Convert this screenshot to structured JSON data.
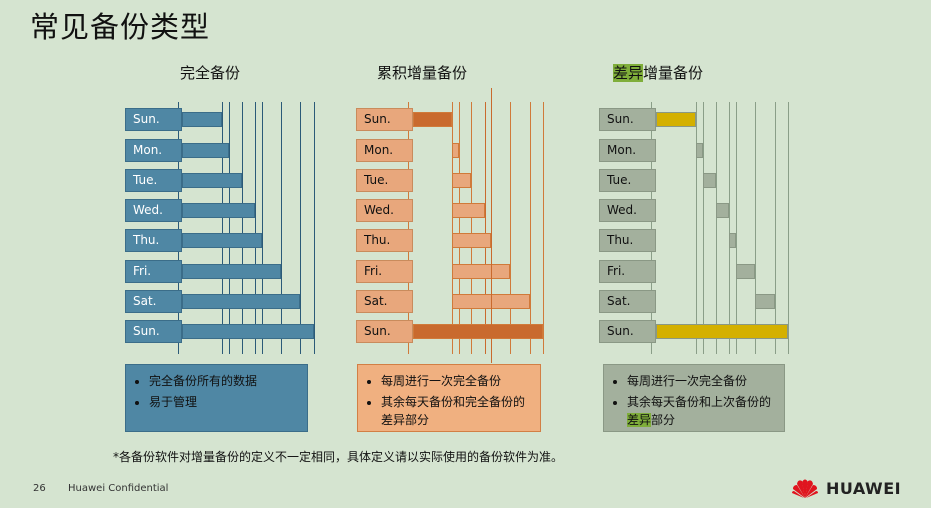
{
  "page": {
    "title": "常见备份类型",
    "footnote": "*各备份软件对增量备份的定义不一定相同，具体定义请以实际使用的备份软件为准。",
    "page_number": "26",
    "confidential": "Huawei Confidential",
    "brand": "HUAWEI"
  },
  "days": [
    "Sun.",
    "Mon.",
    "Tue.",
    "Wed.",
    "Thu.",
    "Fri.",
    "Sat.",
    "Sun."
  ],
  "sections": {
    "full": {
      "title": "完全备份",
      "desc": [
        "完全备份所有的数据",
        "易于管理"
      ],
      "colors": {
        "box": "#4f87a4",
        "text": "#ffffff",
        "line": "#2b5a78"
      }
    },
    "incremental": {
      "title": "累积增量备份",
      "desc": [
        "每周进行一次完全备份",
        "其余每天备份和完全备份的",
        "差异部分"
      ],
      "colors": {
        "box": "#e8a77c",
        "text": "#111111",
        "line": "#d07a3a",
        "strong": "#c96a2e"
      }
    },
    "differential": {
      "title_highlight": "差异",
      "title_rest": "增量备份",
      "desc": [
        "每周进行一次完全备份",
        "其余每天备份和上次备份的",
        "差异",
        "部分"
      ],
      "colors": {
        "box": "#a3b09d",
        "text": "#111111",
        "line": "#8a9e88",
        "strong": "#d4b000"
      }
    }
  }
}
